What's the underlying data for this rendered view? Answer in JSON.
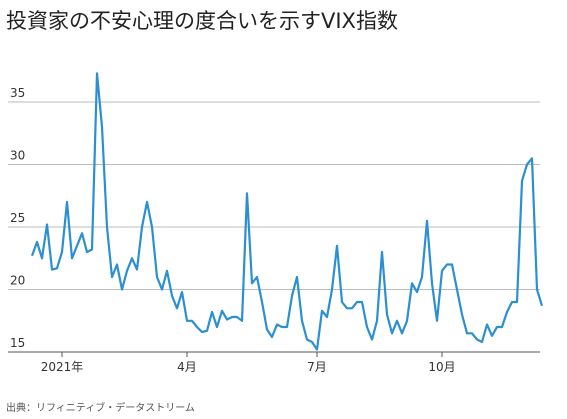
{
  "chart_data": {
    "type": "line",
    "title": "投資家の不安心理の度合いを示すVIX指数",
    "source": "出典：リフィニティブ・データストリーム",
    "categories": [
      null,
      null,
      null,
      null,
      null,
      null,
      "2021年",
      null,
      null,
      null,
      null,
      null,
      null,
      null,
      null,
      null,
      null,
      null,
      null,
      null,
      null,
      null,
      null,
      null,
      null,
      null,
      null,
      null,
      null,
      null,
      null,
      "4月",
      null,
      null,
      null,
      null,
      null,
      null,
      null,
      null,
      null,
      null,
      null,
      null,
      null,
      null,
      null,
      null,
      null,
      null,
      null,
      null,
      null,
      null,
      null,
      null,
      null,
      "7月",
      null,
      null,
      null,
      null,
      null,
      null,
      null,
      null,
      null,
      null,
      null,
      null,
      null,
      null,
      null,
      null,
      null,
      null,
      null,
      null,
      null,
      null,
      null,
      null,
      "10月",
      null,
      null,
      null,
      null,
      null,
      null,
      null,
      null,
      null,
      null,
      null,
      null,
      null,
      null,
      null,
      null,
      null,
      null,
      null,
      null
    ],
    "series": [
      {
        "name": "VIX",
        "color": "#2b8fd1",
        "values": [
          22.7,
          23.8,
          22.5,
          25.2,
          21.6,
          21.7,
          23,
          27,
          22.5,
          23.5,
          24.5,
          23,
          23.2,
          37.3,
          33,
          25,
          21,
          22,
          20,
          21.5,
          22.5,
          21.6,
          25,
          27,
          25,
          21,
          20,
          21.5,
          19.5,
          18.5,
          19.8,
          17.5,
          17.5,
          17,
          16.6,
          16.7,
          18.2,
          17,
          18.3,
          17.6,
          17.8,
          17.8,
          17.5,
          27.7,
          20.5,
          21,
          19,
          16.8,
          16.2,
          17.2,
          17,
          17,
          19.5,
          21,
          17.5,
          16,
          15.8,
          15.2,
          18.3,
          17.8,
          20,
          23.5,
          19,
          18.5,
          18.5,
          19,
          19,
          17,
          16,
          17.5,
          23,
          18,
          16.5,
          17.5,
          16.5,
          17.5,
          20.5,
          19.8,
          21,
          25.5,
          20.5,
          17.5,
          21.5,
          22,
          22,
          20,
          18,
          16.5,
          16.5,
          16,
          15.8,
          17.2,
          16.3,
          17,
          17,
          18.2,
          19,
          19,
          28.7,
          30,
          30.5,
          20,
          18.7
        ]
      }
    ],
    "ylim": [
      15,
      37.6
    ],
    "yticks": [
      15,
      20,
      25,
      30,
      35
    ],
    "grid": true
  }
}
